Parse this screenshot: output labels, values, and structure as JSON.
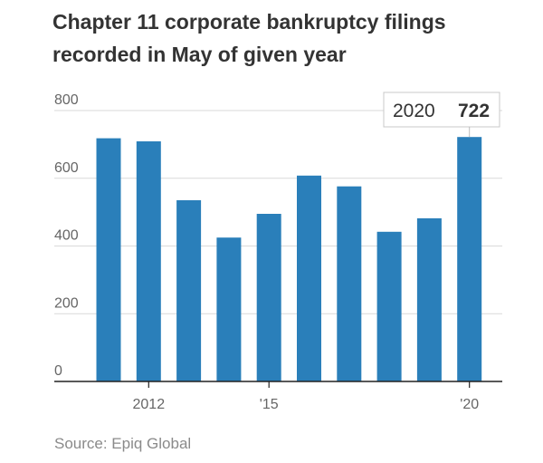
{
  "title_lines": [
    "Chapter 11 corporate bankruptcy filings",
    "recorded in May of given year"
  ],
  "source": "Source: Epiq Global",
  "colors": {
    "bar": "#2a7fba",
    "grid": "#d9d9d9",
    "axis": "#222222",
    "text": "#333333",
    "tick": "#666666"
  },
  "chart_data": {
    "type": "bar",
    "title": "Chapter 11 corporate bankruptcy filings recorded in May of given year",
    "categories": [
      "2011",
      "2012",
      "2013",
      "2014",
      "2015",
      "2016",
      "2017",
      "2018",
      "2019",
      "2020"
    ],
    "values": [
      718,
      709,
      535,
      425,
      495,
      608,
      576,
      442,
      482,
      722
    ],
    "x_tick_labels": [
      {
        "category": "2012",
        "label": "2012"
      },
      {
        "category": "2015",
        "label": "'15"
      },
      {
        "category": "2020",
        "label": "'20"
      }
    ],
    "ylim": [
      0,
      800
    ],
    "yticks": [
      0,
      200,
      400,
      600,
      800
    ],
    "annotation": {
      "category": "2020",
      "year_label": "2020",
      "value_label": "722"
    },
    "grid": true,
    "xlabel": "",
    "ylabel": ""
  }
}
